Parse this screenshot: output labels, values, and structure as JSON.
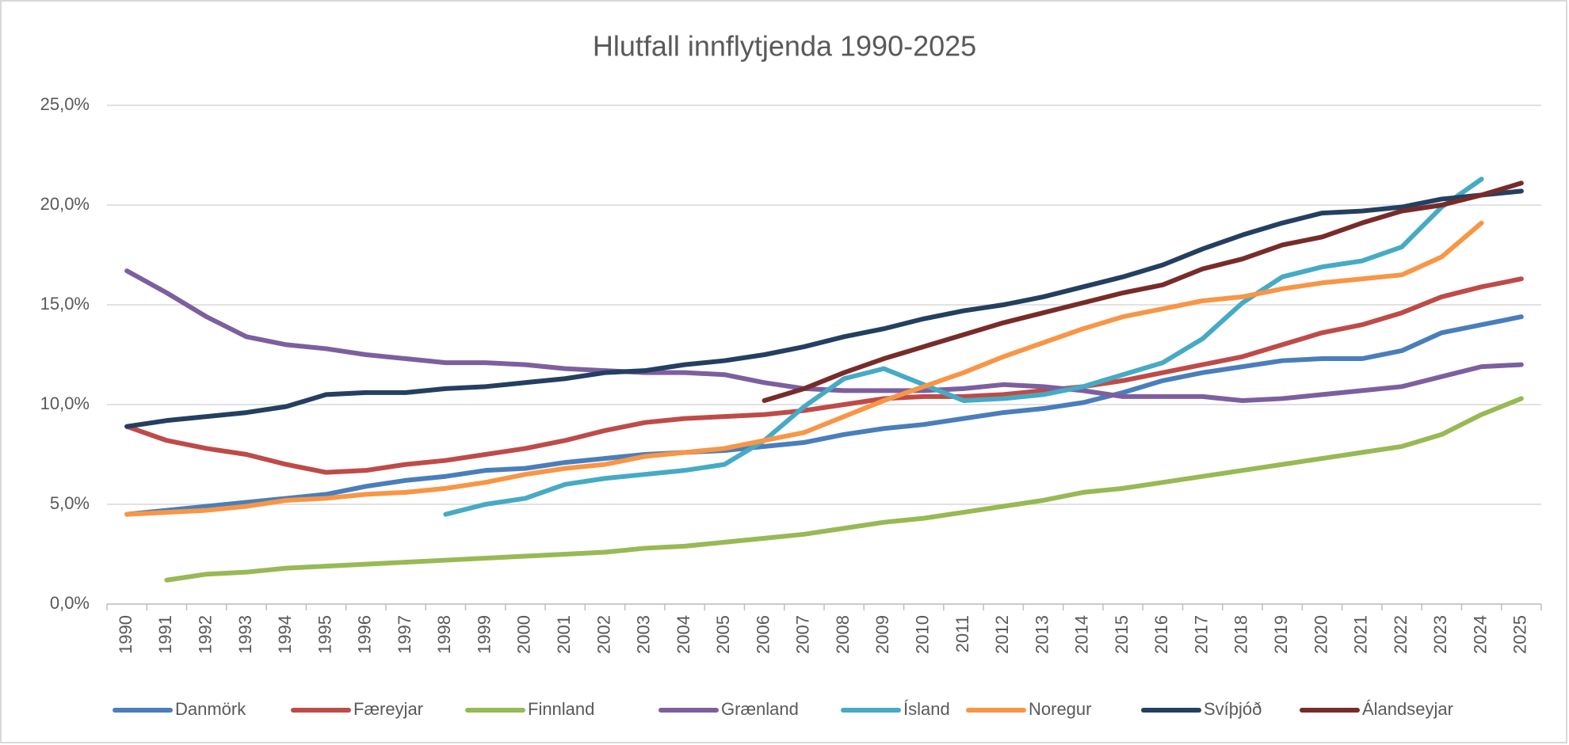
{
  "chart_data": {
    "type": "line",
    "title": "Hlutfall innflytjenda 1990-2025",
    "categories": [
      "1990",
      "1991",
      "1992",
      "1993",
      "1994",
      "1995",
      "1996",
      "1997",
      "1998",
      "1999",
      "2000",
      "2001",
      "2002",
      "2003",
      "2004",
      "2005",
      "2006",
      "2007",
      "2008",
      "2009",
      "2010",
      "2011",
      "2012",
      "2013",
      "2014",
      "2015",
      "2016",
      "2017",
      "2018",
      "2019",
      "2020",
      "2021",
      "2022",
      "2023",
      "2024",
      "2025"
    ],
    "series": [
      {
        "name": "Danmörk",
        "color": "#4a7ebb",
        "values": [
          4.5,
          4.7,
          4.9,
          5.1,
          5.3,
          5.5,
          5.9,
          6.2,
          6.4,
          6.7,
          6.8,
          7.1,
          7.3,
          7.5,
          7.6,
          7.7,
          7.9,
          8.1,
          8.5,
          8.8,
          9.0,
          9.3,
          9.6,
          9.8,
          10.1,
          10.6,
          11.2,
          11.6,
          11.9,
          12.2,
          12.3,
          12.3,
          12.7,
          13.6,
          14.0,
          14.4
        ]
      },
      {
        "name": "Færeyjar",
        "color": "#be4b48",
        "values": [
          8.9,
          8.2,
          7.8,
          7.5,
          7.0,
          6.6,
          6.7,
          7.0,
          7.2,
          7.5,
          7.8,
          8.2,
          8.7,
          9.1,
          9.3,
          9.4,
          9.5,
          9.7,
          10.0,
          10.3,
          10.4,
          10.4,
          10.5,
          10.7,
          10.9,
          11.2,
          11.6,
          12.0,
          12.4,
          13.0,
          13.6,
          14.0,
          14.6,
          15.4,
          15.9,
          16.3
        ]
      },
      {
        "name": "Finnland",
        "color": "#98b954",
        "values": [
          null,
          1.2,
          1.5,
          1.6,
          1.8,
          1.9,
          2.0,
          2.1,
          2.2,
          2.3,
          2.4,
          2.5,
          2.6,
          2.8,
          2.9,
          3.1,
          3.3,
          3.5,
          3.8,
          4.1,
          4.3,
          4.6,
          4.9,
          5.2,
          5.6,
          5.8,
          6.1,
          6.4,
          6.7,
          7.0,
          7.3,
          7.6,
          7.9,
          8.5,
          9.5,
          10.3
        ]
      },
      {
        "name": "Grænland",
        "color": "#7d5fa0",
        "values": [
          16.7,
          15.6,
          14.4,
          13.4,
          13.0,
          12.8,
          12.5,
          12.3,
          12.1,
          12.1,
          12.0,
          11.8,
          11.7,
          11.6,
          11.6,
          11.5,
          11.1,
          10.8,
          10.7,
          10.7,
          10.7,
          10.8,
          11.0,
          10.9,
          10.7,
          10.4,
          10.4,
          10.4,
          10.2,
          10.3,
          10.5,
          10.7,
          10.9,
          11.4,
          11.9,
          12.0
        ]
      },
      {
        "name": "Ísland",
        "color": "#46aac5",
        "values": [
          null,
          null,
          null,
          null,
          null,
          null,
          null,
          null,
          4.5,
          5.0,
          5.3,
          6.0,
          6.3,
          6.5,
          6.7,
          7.0,
          8.2,
          9.9,
          11.3,
          11.8,
          11.0,
          10.2,
          10.3,
          10.5,
          10.9,
          11.5,
          12.1,
          13.3,
          15.1,
          16.4,
          16.9,
          17.2,
          17.9,
          19.9,
          21.3,
          null
        ]
      },
      {
        "name": "Noregur",
        "color": "#f79646",
        "values": [
          4.5,
          4.6,
          4.7,
          4.9,
          5.2,
          5.3,
          5.5,
          5.6,
          5.8,
          6.1,
          6.5,
          6.8,
          7.0,
          7.4,
          7.6,
          7.8,
          8.2,
          8.6,
          9.4,
          10.2,
          10.9,
          11.6,
          12.4,
          13.1,
          13.8,
          14.4,
          14.8,
          15.2,
          15.4,
          15.8,
          16.1,
          16.3,
          16.5,
          17.4,
          19.1,
          null
        ]
      },
      {
        "name": "Svíþjóð",
        "color": "#243f60",
        "values": [
          8.9,
          9.2,
          9.4,
          9.6,
          9.9,
          10.5,
          10.6,
          10.6,
          10.8,
          10.9,
          11.1,
          11.3,
          11.6,
          11.7,
          12.0,
          12.2,
          12.5,
          12.9,
          13.4,
          13.8,
          14.3,
          14.7,
          15.0,
          15.4,
          15.9,
          16.4,
          17.0,
          17.8,
          18.5,
          19.1,
          19.6,
          19.7,
          19.9,
          20.3,
          20.5,
          20.7
        ]
      },
      {
        "name": "Álandseyjar",
        "color": "#772c2a",
        "values": [
          null,
          null,
          null,
          null,
          null,
          null,
          null,
          null,
          null,
          null,
          null,
          null,
          null,
          null,
          null,
          null,
          10.2,
          10.8,
          11.6,
          12.3,
          12.9,
          13.5,
          14.1,
          14.6,
          15.1,
          15.6,
          16.0,
          16.8,
          17.3,
          18.0,
          18.4,
          19.1,
          19.7,
          20.0,
          20.5,
          21.1
        ]
      }
    ],
    "ylim": [
      0,
      25
    ],
    "yticks": [
      {
        "value": 0,
        "label": "0,0%"
      },
      {
        "value": 5,
        "label": "5,0%"
      },
      {
        "value": 10,
        "label": "10,0%"
      },
      {
        "value": 15,
        "label": "15,0%"
      },
      {
        "value": 20,
        "label": "20,0%"
      },
      {
        "value": 25,
        "label": "25,0%"
      }
    ],
    "grid": true,
    "legend": "bottom"
  }
}
